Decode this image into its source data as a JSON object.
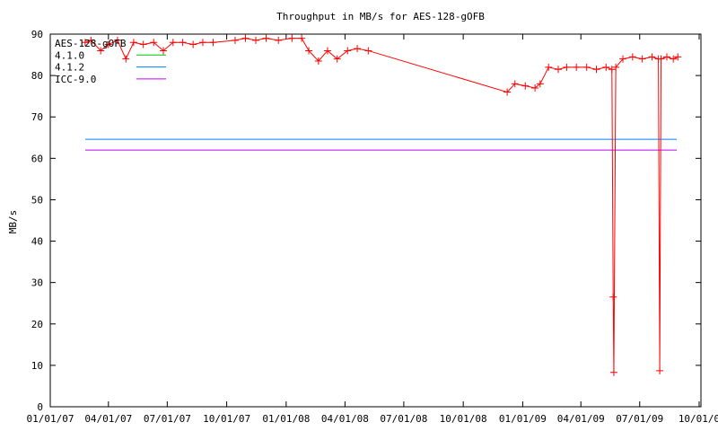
{
  "chart_data": {
    "type": "line",
    "title": "Throughput in MB/s for AES-128-gOFB",
    "xlabel": "",
    "ylabel": "MB/s",
    "ylim": [
      0,
      90
    ],
    "yticks": [
      "0",
      "10",
      "20",
      "30",
      "40",
      "50",
      "60",
      "70",
      "80",
      "90"
    ],
    "xlim": [
      "2007-01-01",
      "2009-10-01"
    ],
    "xticks": [
      "01/01/07",
      "04/01/07",
      "07/01/07",
      "10/01/07",
      "01/01/08",
      "04/01/08",
      "07/01/08",
      "10/01/08",
      "01/01/09",
      "04/01/09",
      "07/01/09",
      "10/01/0"
    ],
    "xtick_dates": [
      "2007-01-01",
      "2007-04-01",
      "2007-07-01",
      "2007-10-01",
      "2008-01-01",
      "2008-04-01",
      "2008-07-01",
      "2008-10-01",
      "2009-01-01",
      "2009-04-01",
      "2009-07-01",
      "2009-10-01"
    ],
    "grid": false,
    "legend_position": "top-left",
    "series": [
      {
        "name": "AES-128-gOFB",
        "color": "#ff0000",
        "style": "linespoints",
        "x": [
          "2007-02-24",
          "2007-03-05",
          "2007-03-20",
          "2007-04-01",
          "2007-04-15",
          "2007-04-28",
          "2007-05-10",
          "2007-05-25",
          "2007-06-10",
          "2007-06-25",
          "2007-07-10",
          "2007-07-25",
          "2007-08-10",
          "2007-08-25",
          "2007-09-10",
          "2007-10-14",
          "2007-10-30",
          "2007-11-15",
          "2007-12-01",
          "2007-12-20",
          "2008-01-10",
          "2008-01-25",
          "2008-02-05",
          "2008-02-20",
          "2008-03-05",
          "2008-03-20",
          "2008-04-05",
          "2008-04-20",
          "2008-05-07",
          "2008-12-08",
          "2008-12-20",
          "2009-01-05",
          "2009-01-20",
          "2009-01-28",
          "2009-02-10",
          "2009-02-25",
          "2009-03-10",
          "2009-03-25",
          "2009-04-10",
          "2009-04-25",
          "2009-05-10",
          "2009-05-19",
          "2009-05-21",
          "2009-05-22",
          "2009-05-25",
          "2009-06-05",
          "2009-06-20",
          "2009-07-05",
          "2009-07-20",
          "2009-07-30",
          "2009-08-01",
          "2009-08-03",
          "2009-08-12",
          "2009-08-22",
          "2009-08-29"
        ],
        "y": [
          88,
          88.5,
          86,
          87.5,
          88.5,
          84,
          88,
          87.5,
          88,
          86,
          88,
          88,
          87.5,
          88,
          88,
          88.5,
          89,
          88.5,
          89,
          88.5,
          89,
          89,
          86,
          83.5,
          86,
          84,
          86,
          86.5,
          86,
          76,
          78,
          77.5,
          77,
          78,
          82,
          81.5,
          82,
          82,
          82,
          81.5,
          82,
          81.5,
          26.5,
          8.3,
          82,
          84,
          84.5,
          84,
          84.5,
          84,
          8.7,
          84,
          84.5,
          84,
          84.5
        ]
      },
      {
        "name": "4.1.0",
        "color": "#00c000",
        "values": []
      },
      {
        "name": "4.1.2",
        "color": "#0080ff",
        "values": [
          64.6
        ]
      },
      {
        "name": "ICC-9.0",
        "color": "#c000ff",
        "values": [
          62
        ]
      }
    ]
  }
}
